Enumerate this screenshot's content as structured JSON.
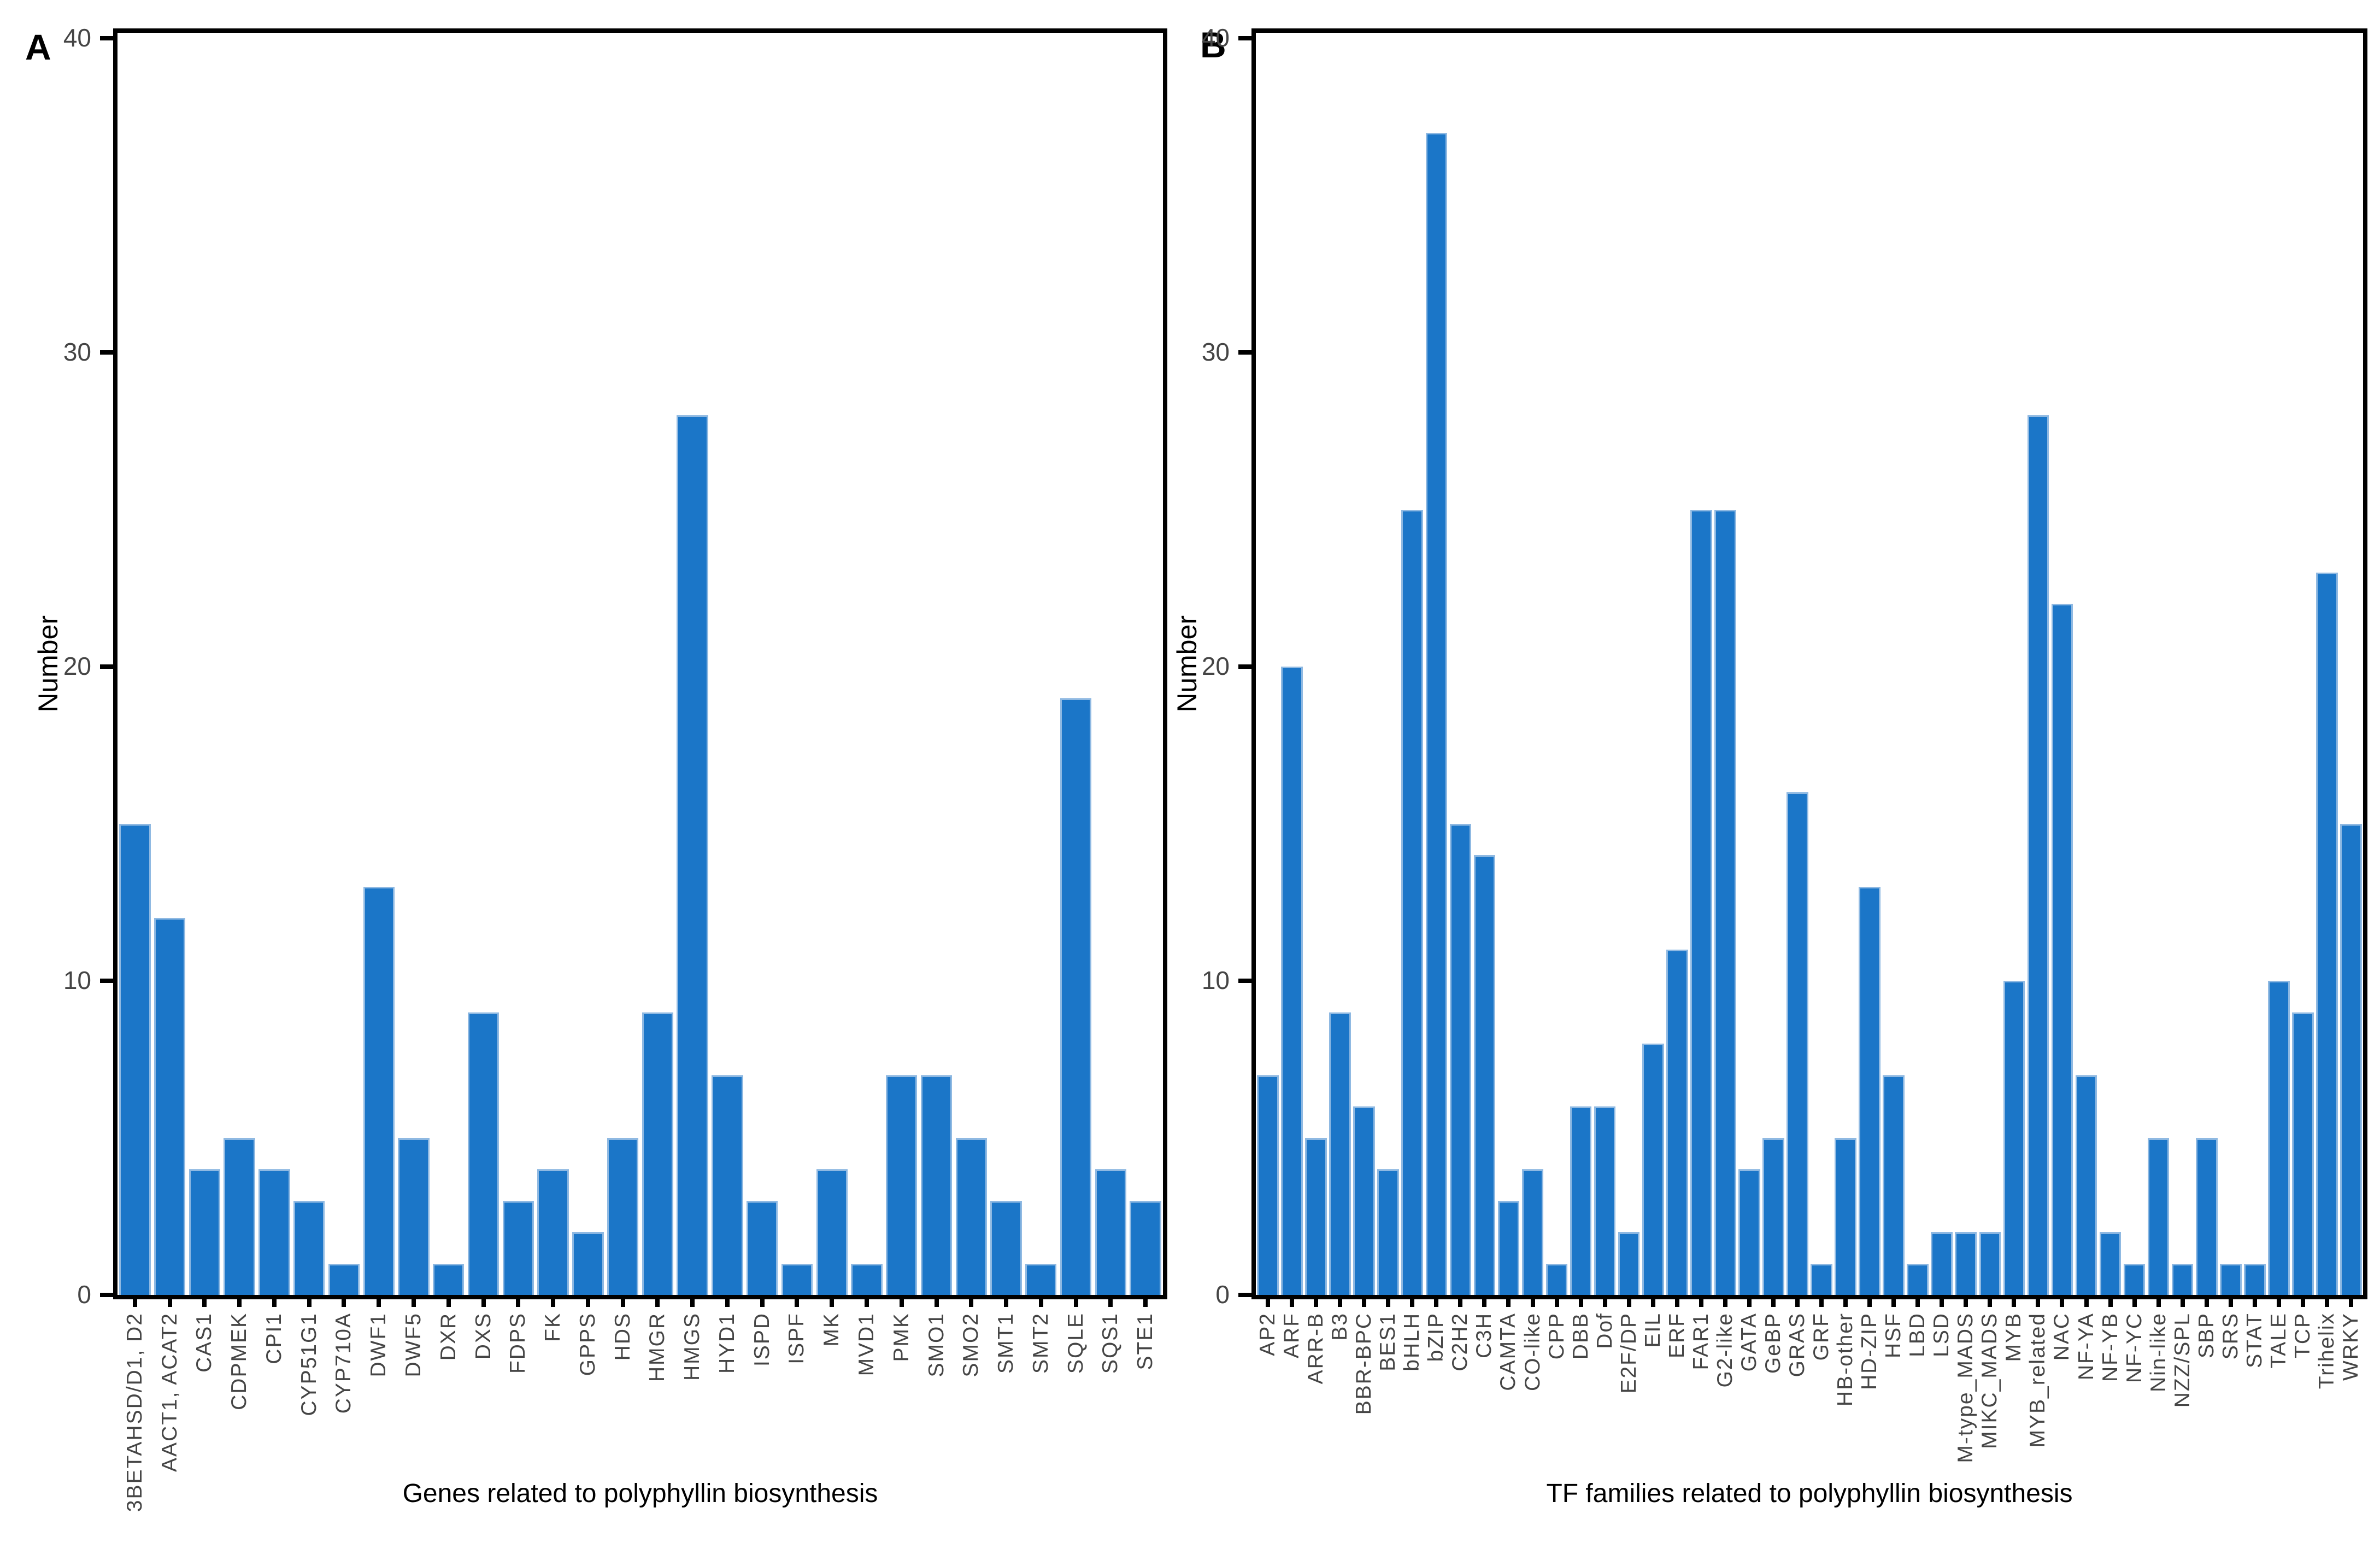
{
  "chart_data": [
    {
      "type": "bar",
      "panel_label": "A",
      "title": "",
      "xlabel": "Genes related to polyphyllin biosynthesis",
      "ylabel": "Number",
      "ylim": [
        0,
        40
      ],
      "yticks": [
        0,
        10,
        20,
        30,
        40
      ],
      "grid": false,
      "legend": "none",
      "bar_color": "#1b76c8",
      "bar_edge_color": "#8fb9e2",
      "categories": [
        "3BETAHSD/D1, D2",
        "AACT1, ACAT2",
        "CAS1",
        "CDPMEK",
        "CPI1",
        "CYP51G1",
        "CYP710A",
        "DWF1",
        "DWF5",
        "DXR",
        "DXS",
        "FDPS",
        "FK",
        "GPPS",
        "HDS",
        "HMGR",
        "HMGS",
        "HYD1",
        "ISPD",
        "ISPF",
        "MK",
        "MVD1",
        "PMK",
        "SMO1",
        "SMO2",
        "SMT1",
        "SMT2",
        "SQLE",
        "SQS1",
        "STE1"
      ],
      "values": [
        15,
        12,
        4,
        5,
        4,
        3,
        1,
        13,
        5,
        1,
        9,
        3,
        4,
        2,
        5,
        9,
        28,
        7,
        3,
        1,
        4,
        1,
        7,
        7,
        5,
        3,
        1,
        19,
        4,
        3
      ]
    },
    {
      "type": "bar",
      "panel_label": "B",
      "title": "",
      "xlabel": "TF families related to polyphyllin biosynthesis",
      "ylabel": "Number",
      "ylim": [
        0,
        40
      ],
      "yticks": [
        0,
        10,
        20,
        30,
        40
      ],
      "grid": false,
      "legend": "none",
      "bar_color": "#1b76c8",
      "bar_edge_color": "#8fb9e2",
      "categories": [
        "AP2",
        "ARF",
        "ARR-B",
        "B3",
        "BBR-BPC",
        "BES1",
        "bHLH",
        "bZIP",
        "C2H2",
        "C3H",
        "CAMTA",
        "CO-like",
        "CPP",
        "DBB",
        "Dof",
        "E2F/DP",
        "EIL",
        "ERF",
        "FAR1",
        "G2-like",
        "GATA",
        "GeBP",
        "GRAS",
        "GRF",
        "HB-other",
        "HD-ZIP",
        "HSF",
        "LBD",
        "LSD",
        "M-type_MADS",
        "MIKC_MADS",
        "MYB",
        "MYB_related",
        "NAC",
        "NF-YA",
        "NF-YB",
        "NF-YC",
        "Nin-like",
        "NZZ/SPL",
        "SBP",
        "SRS",
        "STAT",
        "TALE",
        "TCP",
        "Trihelix",
        "WRKY"
      ],
      "values": [
        7,
        20,
        5,
        9,
        6,
        4,
        25,
        37,
        15,
        14,
        3,
        4,
        1,
        6,
        6,
        2,
        8,
        11,
        25,
        25,
        4,
        5,
        16,
        1,
        5,
        13,
        7,
        1,
        2,
        2,
        2,
        10,
        28,
        22,
        7,
        2,
        1,
        5,
        1,
        5,
        1,
        1,
        10,
        9,
        23,
        15
      ]
    }
  ]
}
